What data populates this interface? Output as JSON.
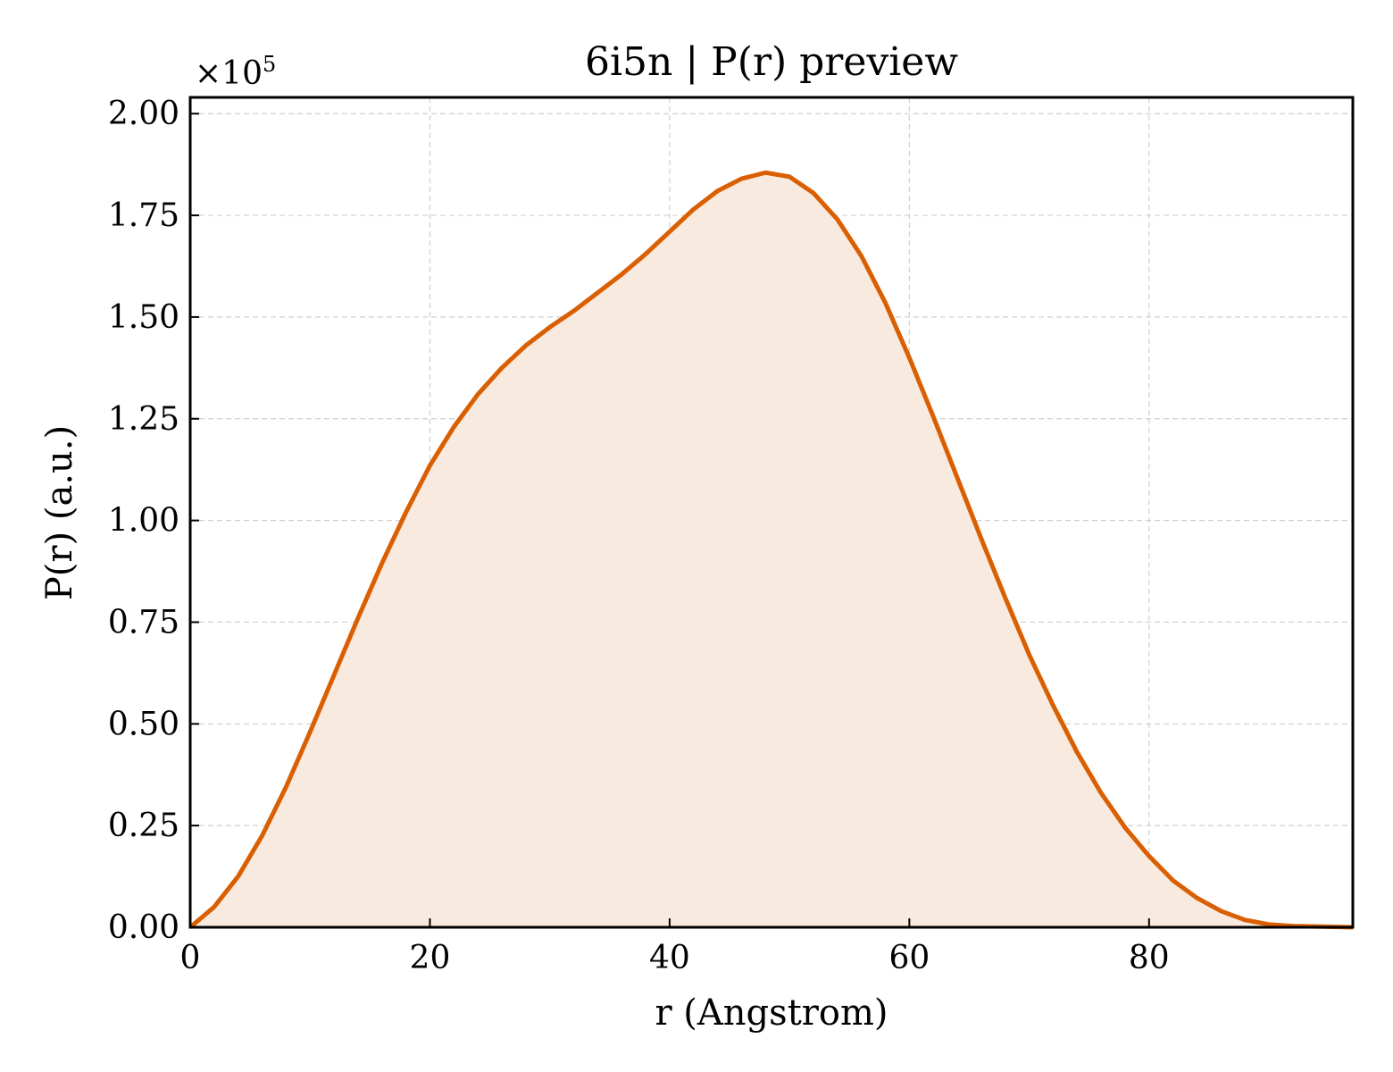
{
  "chart_data": {
    "type": "area",
    "title": "6i5n | P(r) preview",
    "xlabel": "r (Angstrom)",
    "ylabel": "P(r) (a.u.)",
    "y_offset_label": "×10",
    "y_offset_exponent": "5",
    "xlim": [
      0,
      97
    ],
    "ylim": [
      0,
      2.04
    ],
    "x_ticks": [
      0,
      20,
      40,
      60,
      80
    ],
    "x_tick_labels": [
      "0",
      "20",
      "40",
      "60",
      "80"
    ],
    "y_ticks": [
      0,
      0.25,
      0.5,
      0.75,
      1.0,
      1.25,
      1.5,
      1.75,
      2.0
    ],
    "y_tick_labels": [
      "0.00",
      "0.25",
      "0.50",
      "0.75",
      "1.00",
      "1.25",
      "1.50",
      "1.75",
      "2.00"
    ],
    "grid": true,
    "legend": "none",
    "line_color": "#d95f02",
    "fill_color": "#f9eadf",
    "series": [
      {
        "x": [
          0,
          2,
          4,
          6,
          8,
          10,
          12,
          14,
          16,
          18,
          20,
          22,
          24,
          26,
          28,
          30,
          32,
          34,
          36,
          38,
          40,
          42,
          44,
          46,
          48,
          50,
          52,
          54,
          56,
          58,
          60,
          62,
          64,
          66,
          68,
          70,
          72,
          74,
          76,
          78,
          80,
          82,
          84,
          86,
          88,
          90,
          92,
          94,
          97
        ],
        "y": [
          0.0,
          0.05,
          0.125,
          0.225,
          0.345,
          0.48,
          0.62,
          0.76,
          0.895,
          1.02,
          1.135,
          1.23,
          1.31,
          1.375,
          1.43,
          1.475,
          1.515,
          1.56,
          1.605,
          1.655,
          1.71,
          1.765,
          1.81,
          1.84,
          1.855,
          1.845,
          1.805,
          1.74,
          1.65,
          1.535,
          1.4,
          1.255,
          1.105,
          0.955,
          0.81,
          0.67,
          0.545,
          0.43,
          0.33,
          0.245,
          0.175,
          0.115,
          0.072,
          0.04,
          0.018,
          0.007,
          0.003,
          0.002,
          0.0
        ]
      }
    ]
  }
}
